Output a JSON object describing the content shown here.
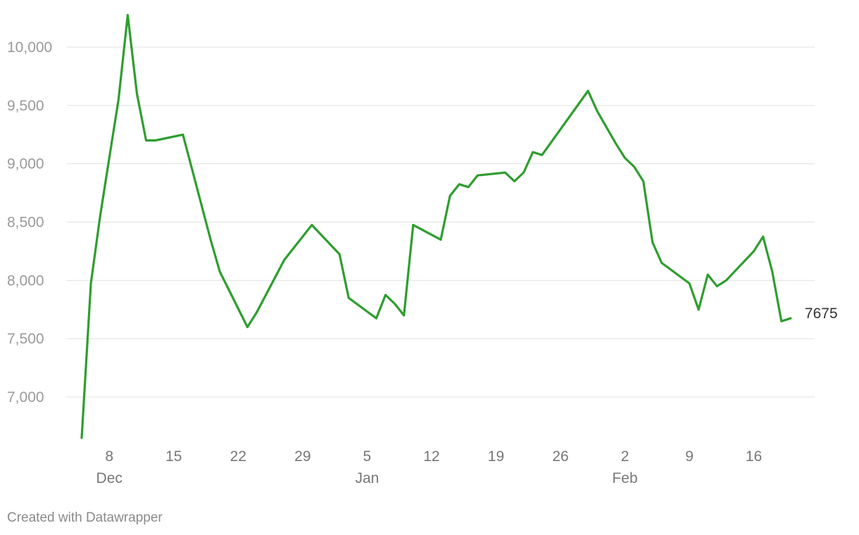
{
  "credit": "Created with Datawrapper",
  "chart_data": {
    "type": "line",
    "title": "",
    "xlabel": "",
    "ylabel": "",
    "ylim": [
      6650,
      10300
    ],
    "xlim": [
      "2019-12-05",
      "2020-02-21"
    ],
    "grid": true,
    "line_color": "#2e9e2e",
    "y_ticks": [
      {
        "value": 7000,
        "label": "7,000"
      },
      {
        "value": 7500,
        "label": "7,500"
      },
      {
        "value": 8000,
        "label": "8,000"
      },
      {
        "value": 8500,
        "label": "8,500"
      },
      {
        "value": 9000,
        "label": "9,000"
      },
      {
        "value": 9500,
        "label": "9,500"
      },
      {
        "value": 10000,
        "label": "10,000"
      }
    ],
    "x_ticks": [
      {
        "date": "2019-12-08",
        "label": "8",
        "month": "Dec"
      },
      {
        "date": "2019-12-15",
        "label": "15",
        "month": ""
      },
      {
        "date": "2019-12-22",
        "label": "22",
        "month": ""
      },
      {
        "date": "2019-12-29",
        "label": "29",
        "month": ""
      },
      {
        "date": "2020-01-05",
        "label": "5",
        "month": "Jan"
      },
      {
        "date": "2020-01-12",
        "label": "12",
        "month": ""
      },
      {
        "date": "2020-01-19",
        "label": "19",
        "month": ""
      },
      {
        "date": "2020-01-26",
        "label": "26",
        "month": ""
      },
      {
        "date": "2020-02-02",
        "label": "2",
        "month": "Feb"
      },
      {
        "date": "2020-02-09",
        "label": "9",
        "month": ""
      },
      {
        "date": "2020-02-16",
        "label": "16",
        "month": ""
      }
    ],
    "end_label": "7675",
    "series": [
      {
        "x": [
          "2019-12-05",
          "2019-12-06",
          "2019-12-07",
          "2019-12-08",
          "2019-12-09",
          "2019-12-10",
          "2019-12-11",
          "2019-12-12",
          "2019-12-13",
          "2019-12-16",
          "2019-12-17",
          "2019-12-18",
          "2019-12-19",
          "2019-12-20",
          "2019-12-23",
          "2019-12-24",
          "2019-12-27",
          "2019-12-30",
          "2020-01-02",
          "2020-01-03",
          "2020-01-06",
          "2020-01-07",
          "2020-01-08",
          "2020-01-09",
          "2020-01-10",
          "2020-01-13",
          "2020-01-14",
          "2020-01-15",
          "2020-01-16",
          "2020-01-17",
          "2020-01-20",
          "2020-01-21",
          "2020-01-22",
          "2020-01-23",
          "2020-01-24",
          "2020-01-29",
          "2020-01-30",
          "2020-02-01",
          "2020-02-02",
          "2020-02-03",
          "2020-02-04",
          "2020-02-05",
          "2020-02-06",
          "2020-02-09",
          "2020-02-10",
          "2020-02-11",
          "2020-02-12",
          "2020-02-13",
          "2020-02-16",
          "2020-02-17",
          "2020-02-18",
          "2020-02-19",
          "2020-02-20"
        ],
        "values": [
          6650,
          7975,
          8550,
          9050,
          9550,
          10275,
          9600,
          9200,
          9200,
          9250,
          8950,
          8650,
          8350,
          8075,
          7600,
          7725,
          8175,
          8475,
          8225,
          7850,
          7675,
          7875,
          7800,
          7700,
          8475,
          8350,
          8725,
          8825,
          8800,
          8900,
          8925,
          8850,
          8925,
          9100,
          9075,
          9625,
          9450,
          9175,
          9050,
          8975,
          8850,
          8325,
          8150,
          7975,
          7750,
          8050,
          7950,
          8000,
          8250,
          8375,
          8075,
          7650,
          7675
        ]
      }
    ]
  }
}
